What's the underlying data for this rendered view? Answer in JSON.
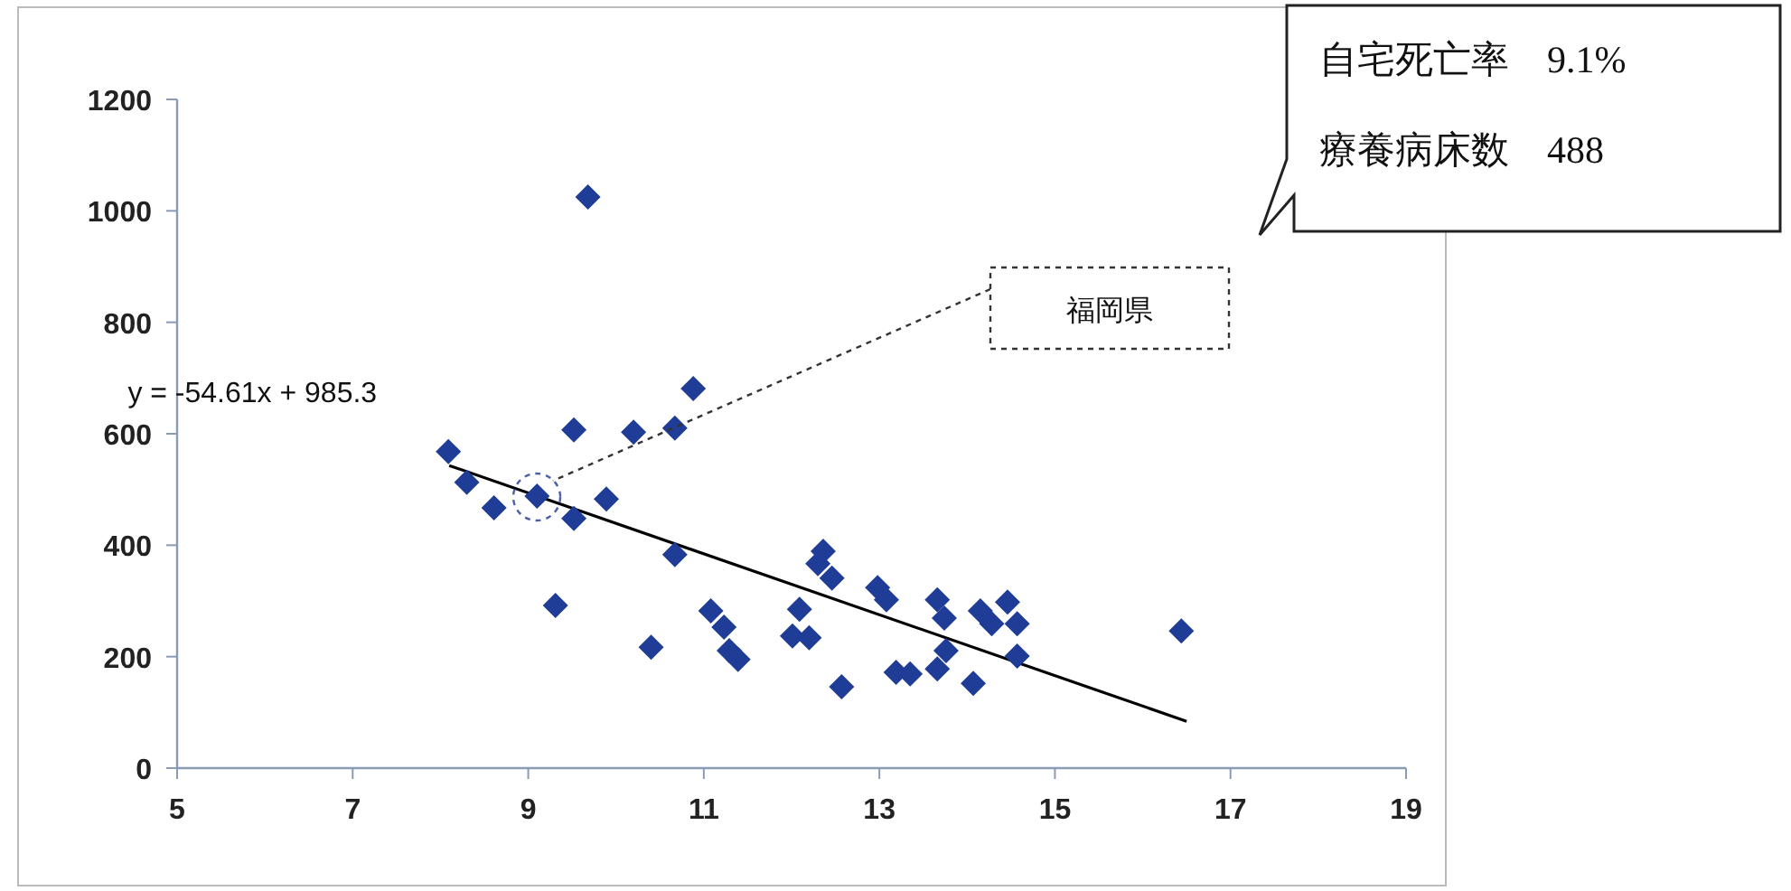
{
  "chart_data": {
    "type": "scatter",
    "marker": "diamond",
    "grid": false,
    "xlim": [
      5,
      19
    ],
    "xticks": [
      5,
      7,
      9,
      11,
      13,
      15,
      17,
      19
    ],
    "ylim": [
      0,
      1200
    ],
    "yticks": [
      0,
      200,
      400,
      600,
      800,
      1000,
      1200
    ],
    "series": [
      {
        "color": "#1f3c96",
        "x": [
          9.68,
          8.09,
          8.3,
          8.61,
          9.1,
          9.52,
          10.2,
          10.67,
          10.88,
          9.89,
          9.52,
          9.31,
          10.67,
          10.4,
          12.36,
          12.3,
          12.46,
          11.08,
          11.23,
          11.29,
          11.39,
          12.09,
          12.01,
          12.2,
          12.57,
          12.98,
          13.08,
          13.19,
          13.35,
          13.66,
          13.74,
          13.76,
          13.66,
          14.07,
          14.15,
          14.28,
          14.46,
          14.57,
          14.57,
          16.44
        ],
        "values": [
          1025,
          568,
          513,
          467,
          488,
          607,
          603,
          610,
          681,
          483,
          448,
          292,
          383,
          217,
          389,
          367,
          341,
          282,
          253,
          211,
          195,
          285,
          237,
          234,
          146,
          324,
          302,
          172,
          169,
          302,
          269,
          211,
          178,
          152,
          282,
          259,
          298,
          259,
          201,
          246
        ]
      },
      {
        "type": "line",
        "marker": "none",
        "color": "#000000",
        "x": [
          8.1,
          16.5
        ],
        "values": [
          543,
          84
        ]
      }
    ],
    "annotations": [
      "y = -54.61x + 985.3",
      "福岡県",
      "自宅死亡率　9.1%",
      "療養病床数　488"
    ]
  }
}
